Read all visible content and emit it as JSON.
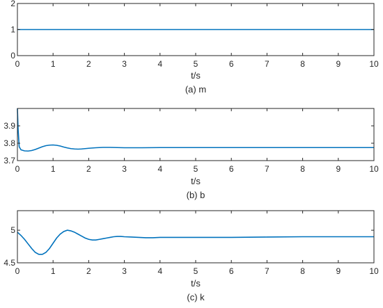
{
  "chart_data": [
    {
      "type": "line",
      "caption": "(a) m",
      "xlabel": "t/s",
      "xlim": [
        0,
        10
      ],
      "ylim": [
        0,
        2
      ],
      "xticks": [
        0,
        1,
        2,
        3,
        4,
        5,
        6,
        7,
        8,
        9,
        10
      ],
      "yticks": [
        0,
        1,
        2
      ],
      "color": "#0072BD",
      "series": [
        {
          "x": [
            0,
            10
          ],
          "y": [
            1,
            1
          ]
        }
      ]
    },
    {
      "type": "line",
      "caption": "(b) b",
      "xlabel": "t/s",
      "xlim": [
        0,
        10
      ],
      "ylim": [
        3.7,
        4.0
      ],
      "xticks": [
        0,
        1,
        2,
        3,
        4,
        5,
        6,
        7,
        8,
        9,
        10
      ],
      "yticks": [
        3.7,
        3.8,
        3.9
      ],
      "color": "#0072BD",
      "series": [
        {
          "x": [
            0,
            0.02,
            0.05,
            0.1,
            0.2,
            0.3,
            0.4,
            0.5,
            0.6,
            0.7,
            0.8,
            0.9,
            1.0,
            1.1,
            1.2,
            1.3,
            1.4,
            1.5,
            1.6,
            1.7,
            1.8,
            1.9,
            2.0,
            2.2,
            2.4,
            2.6,
            2.8,
            3.0,
            3.5,
            4,
            5,
            6,
            7,
            8,
            9,
            10
          ],
          "y": [
            4.0,
            3.88,
            3.78,
            3.762,
            3.756,
            3.755,
            3.758,
            3.764,
            3.772,
            3.78,
            3.786,
            3.789,
            3.79,
            3.788,
            3.784,
            3.778,
            3.773,
            3.769,
            3.767,
            3.766,
            3.767,
            3.769,
            3.771,
            3.774,
            3.776,
            3.776,
            3.775,
            3.774,
            3.774,
            3.775,
            3.775,
            3.775,
            3.775,
            3.775,
            3.775,
            3.775
          ]
        }
      ]
    },
    {
      "type": "line",
      "caption": "(c) k",
      "xlabel": "t/s",
      "xlim": [
        0,
        10
      ],
      "ylim": [
        4.5,
        5.3
      ],
      "xticks": [
        0,
        1,
        2,
        3,
        4,
        5,
        6,
        7,
        8,
        9,
        10
      ],
      "yticks": [
        4.5,
        5
      ],
      "color": "#0072BD",
      "series": [
        {
          "x": [
            0,
            0.1,
            0.2,
            0.3,
            0.4,
            0.5,
            0.6,
            0.7,
            0.8,
            0.9,
            1.0,
            1.1,
            1.2,
            1.3,
            1.4,
            1.5,
            1.6,
            1.7,
            1.8,
            1.9,
            2.0,
            2.1,
            2.2,
            2.3,
            2.4,
            2.5,
            2.6,
            2.7,
            2.8,
            2.9,
            3.0,
            3.2,
            3.4,
            3.6,
            3.8,
            4,
            5,
            6,
            7,
            8,
            9,
            10
          ],
          "y": [
            4.97,
            4.92,
            4.86,
            4.79,
            4.72,
            4.66,
            4.63,
            4.63,
            4.66,
            4.72,
            4.8,
            4.88,
            4.94,
            4.98,
            5.0,
            4.99,
            4.97,
            4.94,
            4.91,
            4.88,
            4.86,
            4.85,
            4.85,
            4.86,
            4.87,
            4.88,
            4.89,
            4.9,
            4.905,
            4.905,
            4.9,
            4.895,
            4.89,
            4.885,
            4.885,
            4.89,
            4.89,
            4.89,
            4.895,
            4.9,
            4.9,
            4.9
          ]
        }
      ]
    }
  ]
}
